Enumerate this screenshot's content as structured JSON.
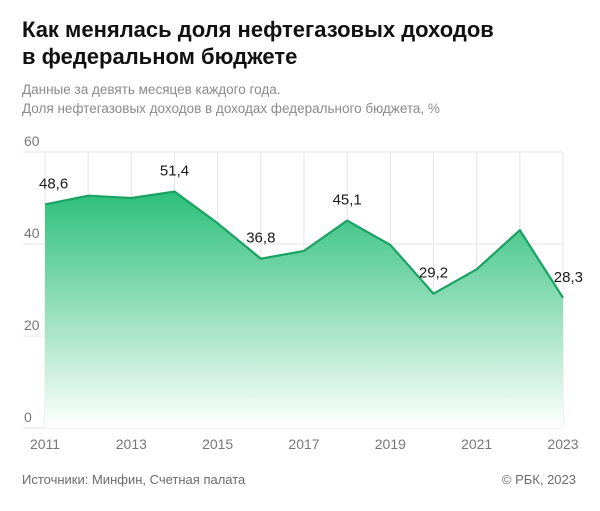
{
  "header": {
    "title_line1": "Как менялась доля нефтегазовых доходов",
    "title_line2": "в федеральном бюджете",
    "subtitle_line1": "Данные за девять месяцев каждого года.",
    "subtitle_line2": "Доля нефтегазовых доходов в доходах федерального бюджета, %"
  },
  "footer": {
    "source": "Источники: Минфин, Счетная палата",
    "copyright": "© РБК, 2023"
  },
  "colors": {
    "line": "#1aa262",
    "fill_top": "#2cbf7a",
    "fill_bottom": "#ffffff",
    "grid": "#e4e4e4",
    "tick": "#777777"
  },
  "chart_data": {
    "type": "area",
    "x": [
      2011,
      2012,
      2013,
      2014,
      2015,
      2016,
      2017,
      2018,
      2019,
      2020,
      2021,
      2022,
      2023
    ],
    "series": [
      {
        "values": [
          48.6,
          50.5,
          50.0,
          51.4,
          44.5,
          36.8,
          38.5,
          45.1,
          39.8,
          29.2,
          34.5,
          43.0,
          28.3
        ]
      }
    ],
    "labels": [
      {
        "year": 2011,
        "text": "48,6"
      },
      {
        "year": 2014,
        "text": "51,4"
      },
      {
        "year": 2016,
        "text": "36,8"
      },
      {
        "year": 2018,
        "text": "45,1"
      },
      {
        "year": 2020,
        "text": "29,2"
      },
      {
        "year": 2023,
        "text": "28,3"
      }
    ],
    "x_ticks": [
      "2011",
      "2013",
      "2015",
      "2017",
      "2019",
      "2021",
      "2023"
    ],
    "y_ticks": [
      "0",
      "20",
      "40",
      "60"
    ],
    "ylim": [
      0,
      60
    ],
    "xlim": [
      2011,
      2023
    ],
    "grid": true,
    "legend": "none"
  }
}
